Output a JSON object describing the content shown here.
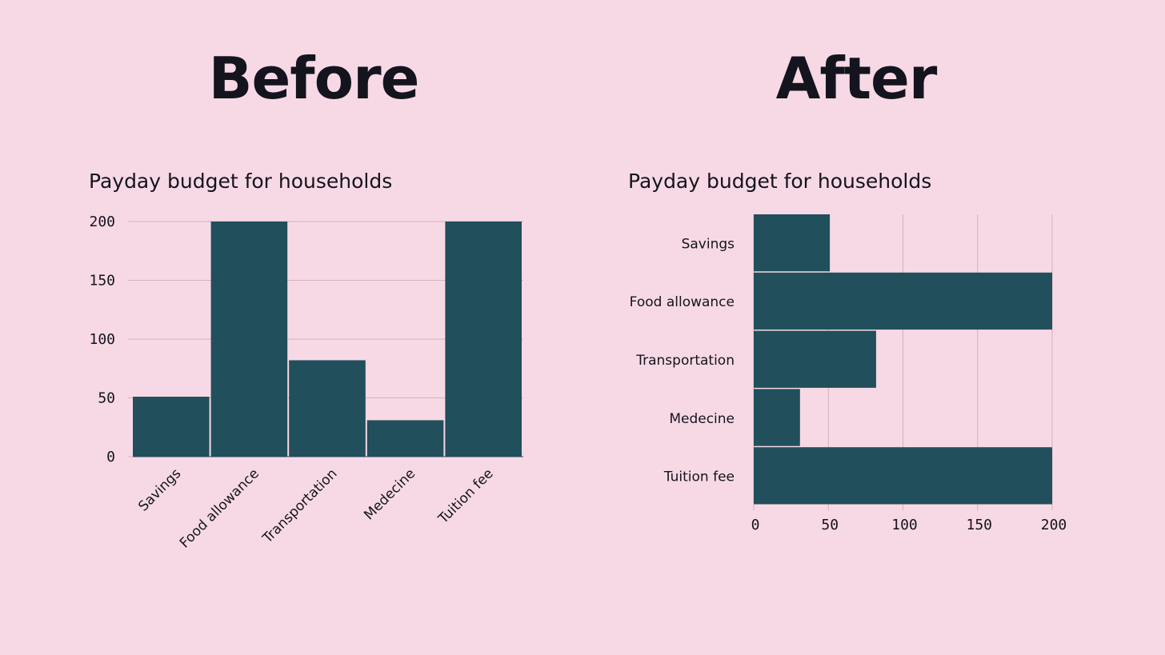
{
  "headings": {
    "before": "Before",
    "after": "After"
  },
  "chart_data": [
    {
      "type": "bar",
      "orientation": "vertical",
      "title": "Payday budget for households",
      "categories": [
        "Savings",
        "Food allowance",
        "Transportation",
        "Medecine",
        "Tuition fee"
      ],
      "values": [
        51,
        200,
        82,
        31,
        200
      ],
      "ylim": [
        0,
        200
      ],
      "yticks": [
        0,
        50,
        100,
        150,
        200
      ],
      "xlabel": "",
      "ylabel": "",
      "grid": "horizontal",
      "bar_color": "#214f5c",
      "grid_color": "#d4b0be"
    },
    {
      "type": "bar",
      "orientation": "horizontal",
      "title": "Payday budget for households",
      "categories": [
        "Savings",
        "Food allowance",
        "Transportation",
        "Medecine",
        "Tuition fee"
      ],
      "values": [
        51,
        200,
        82,
        31,
        200
      ],
      "xlim": [
        0,
        200
      ],
      "xticks": [
        0,
        50,
        100,
        150,
        200
      ],
      "xlabel": "",
      "ylabel": "",
      "grid": "vertical",
      "bar_color": "#214f5c",
      "grid_color": "#d4b0be"
    }
  ]
}
